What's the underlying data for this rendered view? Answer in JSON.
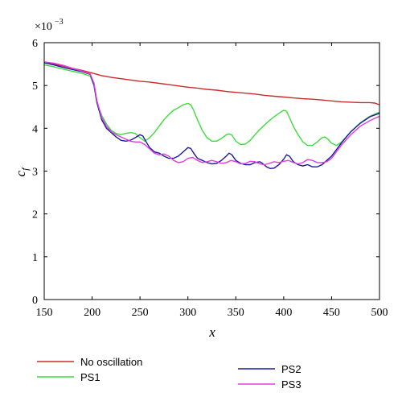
{
  "chart_data": {
    "type": "line",
    "xlabel": "x",
    "ylabel": "c",
    "ylabel_subscript": "f",
    "exponent_label": "×10",
    "exponent_power": "−3",
    "xlim": [
      150,
      500
    ],
    "ylim": [
      0,
      6
    ],
    "x_ticks": [
      "150",
      "200",
      "250",
      "300",
      "350",
      "400",
      "450",
      "500"
    ],
    "y_ticks": [
      "0",
      "1",
      "2",
      "3",
      "4",
      "5",
      "6"
    ],
    "grid": false,
    "legend_position": "bottom",
    "series": [
      {
        "name": "No oscillation",
        "color": "#cc2b2b",
        "points": [
          [
            150,
            5.53
          ],
          [
            160,
            5.5
          ],
          [
            170,
            5.45
          ],
          [
            180,
            5.4
          ],
          [
            190,
            5.35
          ],
          [
            200,
            5.29
          ],
          [
            210,
            5.23
          ],
          [
            220,
            5.19
          ],
          [
            230,
            5.16
          ],
          [
            240,
            5.13
          ],
          [
            250,
            5.1
          ],
          [
            260,
            5.08
          ],
          [
            270,
            5.05
          ],
          [
            280,
            5.02
          ],
          [
            290,
            4.99
          ],
          [
            300,
            4.96
          ],
          [
            310,
            4.94
          ],
          [
            320,
            4.91
          ],
          [
            330,
            4.89
          ],
          [
            340,
            4.86
          ],
          [
            350,
            4.84
          ],
          [
            360,
            4.82
          ],
          [
            370,
            4.8
          ],
          [
            380,
            4.77
          ],
          [
            390,
            4.75
          ],
          [
            400,
            4.73
          ],
          [
            410,
            4.71
          ],
          [
            420,
            4.69
          ],
          [
            430,
            4.68
          ],
          [
            440,
            4.66
          ],
          [
            450,
            4.64
          ],
          [
            460,
            4.62
          ],
          [
            470,
            4.61
          ],
          [
            480,
            4.6
          ],
          [
            490,
            4.6
          ],
          [
            495,
            4.59
          ],
          [
            500,
            4.55
          ]
        ]
      },
      {
        "name": "PS1",
        "color": "#3ddc3d",
        "points": [
          [
            150,
            5.48
          ],
          [
            160,
            5.44
          ],
          [
            170,
            5.38
          ],
          [
            180,
            5.33
          ],
          [
            190,
            5.28
          ],
          [
            198,
            5.22
          ],
          [
            202,
            5.0
          ],
          [
            205,
            4.6
          ],
          [
            210,
            4.3
          ],
          [
            215,
            4.1
          ],
          [
            220,
            3.95
          ],
          [
            225,
            3.88
          ],
          [
            230,
            3.85
          ],
          [
            235,
            3.88
          ],
          [
            240,
            3.9
          ],
          [
            245,
            3.88
          ],
          [
            250,
            3.78
          ],
          [
            255,
            3.7
          ],
          [
            260,
            3.78
          ],
          [
            265,
            3.9
          ],
          [
            270,
            4.05
          ],
          [
            275,
            4.2
          ],
          [
            280,
            4.32
          ],
          [
            285,
            4.42
          ],
          [
            290,
            4.48
          ],
          [
            295,
            4.55
          ],
          [
            300,
            4.58
          ],
          [
            303,
            4.55
          ],
          [
            306,
            4.42
          ],
          [
            310,
            4.2
          ],
          [
            315,
            3.95
          ],
          [
            320,
            3.78
          ],
          [
            325,
            3.7
          ],
          [
            330,
            3.7
          ],
          [
            335,
            3.76
          ],
          [
            340,
            3.85
          ],
          [
            343,
            3.87
          ],
          [
            346,
            3.84
          ],
          [
            350,
            3.7
          ],
          [
            355,
            3.62
          ],
          [
            360,
            3.63
          ],
          [
            365,
            3.72
          ],
          [
            370,
            3.85
          ],
          [
            375,
            3.97
          ],
          [
            380,
            4.08
          ],
          [
            385,
            4.18
          ],
          [
            390,
            4.27
          ],
          [
            395,
            4.35
          ],
          [
            400,
            4.42
          ],
          [
            403,
            4.4
          ],
          [
            406,
            4.25
          ],
          [
            410,
            4.05
          ],
          [
            415,
            3.85
          ],
          [
            420,
            3.68
          ],
          [
            425,
            3.6
          ],
          [
            430,
            3.6
          ],
          [
            435,
            3.68
          ],
          [
            440,
            3.78
          ],
          [
            443,
            3.8
          ],
          [
            446,
            3.75
          ],
          [
            450,
            3.65
          ],
          [
            455,
            3.6
          ],
          [
            460,
            3.67
          ],
          [
            470,
            3.92
          ],
          [
            480,
            4.13
          ],
          [
            490,
            4.28
          ],
          [
            500,
            4.38
          ]
        ]
      },
      {
        "name": "PS2",
        "color": "#1a1aa0",
        "points": [
          [
            150,
            5.53
          ],
          [
            160,
            5.48
          ],
          [
            170,
            5.42
          ],
          [
            180,
            5.37
          ],
          [
            190,
            5.32
          ],
          [
            198,
            5.26
          ],
          [
            202,
            5.0
          ],
          [
            205,
            4.6
          ],
          [
            210,
            4.2
          ],
          [
            215,
            4.0
          ],
          [
            220,
            3.9
          ],
          [
            225,
            3.8
          ],
          [
            230,
            3.72
          ],
          [
            235,
            3.7
          ],
          [
            240,
            3.72
          ],
          [
            245,
            3.78
          ],
          [
            250,
            3.85
          ],
          [
            253,
            3.82
          ],
          [
            256,
            3.7
          ],
          [
            260,
            3.55
          ],
          [
            265,
            3.45
          ],
          [
            270,
            3.42
          ],
          [
            275,
            3.35
          ],
          [
            280,
            3.3
          ],
          [
            285,
            3.3
          ],
          [
            290,
            3.35
          ],
          [
            295,
            3.45
          ],
          [
            300,
            3.55
          ],
          [
            303,
            3.53
          ],
          [
            306,
            3.42
          ],
          [
            310,
            3.3
          ],
          [
            315,
            3.25
          ],
          [
            320,
            3.2
          ],
          [
            325,
            3.17
          ],
          [
            330,
            3.18
          ],
          [
            335,
            3.25
          ],
          [
            340,
            3.35
          ],
          [
            343,
            3.42
          ],
          [
            346,
            3.38
          ],
          [
            350,
            3.25
          ],
          [
            355,
            3.18
          ],
          [
            360,
            3.15
          ],
          [
            365,
            3.15
          ],
          [
            370,
            3.2
          ],
          [
            375,
            3.22
          ],
          [
            378,
            3.18
          ],
          [
            382,
            3.1
          ],
          [
            386,
            3.06
          ],
          [
            390,
            3.07
          ],
          [
            395,
            3.15
          ],
          [
            400,
            3.28
          ],
          [
            403,
            3.38
          ],
          [
            406,
            3.35
          ],
          [
            410,
            3.22
          ],
          [
            415,
            3.15
          ],
          [
            420,
            3.12
          ],
          [
            425,
            3.15
          ],
          [
            430,
            3.1
          ],
          [
            435,
            3.1
          ],
          [
            440,
            3.15
          ],
          [
            445,
            3.25
          ],
          [
            450,
            3.35
          ],
          [
            455,
            3.5
          ],
          [
            460,
            3.65
          ],
          [
            470,
            3.92
          ],
          [
            480,
            4.12
          ],
          [
            490,
            4.27
          ],
          [
            500,
            4.35
          ]
        ]
      },
      {
        "name": "PS3",
        "color": "#e03de0",
        "points": [
          [
            150,
            5.55
          ],
          [
            160,
            5.52
          ],
          [
            170,
            5.47
          ],
          [
            180,
            5.4
          ],
          [
            190,
            5.33
          ],
          [
            198,
            5.27
          ],
          [
            202,
            5.05
          ],
          [
            205,
            4.65
          ],
          [
            210,
            4.25
          ],
          [
            215,
            4.05
          ],
          [
            220,
            3.92
          ],
          [
            225,
            3.85
          ],
          [
            230,
            3.8
          ],
          [
            235,
            3.75
          ],
          [
            240,
            3.7
          ],
          [
            245,
            3.68
          ],
          [
            250,
            3.68
          ],
          [
            255,
            3.62
          ],
          [
            260,
            3.52
          ],
          [
            265,
            3.42
          ],
          [
            270,
            3.38
          ],
          [
            275,
            3.4
          ],
          [
            280,
            3.35
          ],
          [
            285,
            3.25
          ],
          [
            290,
            3.2
          ],
          [
            295,
            3.22
          ],
          [
            300,
            3.3
          ],
          [
            305,
            3.32
          ],
          [
            310,
            3.25
          ],
          [
            315,
            3.2
          ],
          [
            320,
            3.22
          ],
          [
            325,
            3.25
          ],
          [
            330,
            3.22
          ],
          [
            335,
            3.18
          ],
          [
            340,
            3.2
          ],
          [
            345,
            3.25
          ],
          [
            350,
            3.22
          ],
          [
            355,
            3.17
          ],
          [
            360,
            3.18
          ],
          [
            365,
            3.23
          ],
          [
            370,
            3.22
          ],
          [
            375,
            3.17
          ],
          [
            380,
            3.15
          ],
          [
            385,
            3.18
          ],
          [
            390,
            3.22
          ],
          [
            395,
            3.2
          ],
          [
            400,
            3.23
          ],
          [
            405,
            3.25
          ],
          [
            410,
            3.2
          ],
          [
            415,
            3.17
          ],
          [
            420,
            3.2
          ],
          [
            425,
            3.27
          ],
          [
            430,
            3.25
          ],
          [
            435,
            3.2
          ],
          [
            440,
            3.2
          ],
          [
            445,
            3.22
          ],
          [
            450,
            3.3
          ],
          [
            455,
            3.45
          ],
          [
            460,
            3.6
          ],
          [
            470,
            3.85
          ],
          [
            480,
            4.05
          ],
          [
            490,
            4.18
          ],
          [
            500,
            4.28
          ]
        ]
      }
    ]
  }
}
